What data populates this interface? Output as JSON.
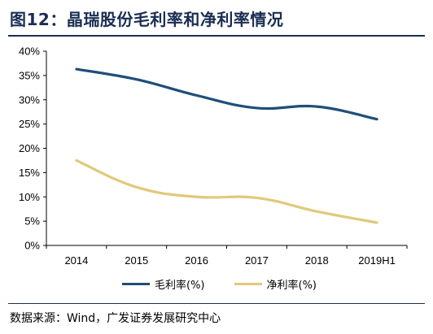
{
  "header": {
    "title": "图12：晶瑞股份毛利率和净利率情况"
  },
  "source": {
    "text": "数据来源：Wind，广发证券发展研究中心"
  },
  "colors": {
    "title": "#1a2e54",
    "gross": "#1f4e79",
    "net": "#e0c97a"
  },
  "chart_data": {
    "type": "line",
    "title": "",
    "xlabel": "",
    "ylabel": "",
    "categories": [
      "2014",
      "2015",
      "2016",
      "2017",
      "2018",
      "2019H1"
    ],
    "y_ticks": [
      "0%",
      "5%",
      "10%",
      "15%",
      "20%",
      "25%",
      "30%",
      "35%",
      "40%"
    ],
    "ylim": [
      0,
      40
    ],
    "grid": false,
    "legend_position": "bottom",
    "series": [
      {
        "name": "毛利率(%)",
        "color": "#1f4e79",
        "values": [
          36.3,
          34.2,
          30.9,
          28.3,
          28.6,
          26.0
        ]
      },
      {
        "name": "净利率(%)",
        "color": "#e0c97a",
        "values": [
          17.5,
          12.0,
          10.0,
          9.8,
          7.0,
          4.7
        ]
      }
    ]
  }
}
